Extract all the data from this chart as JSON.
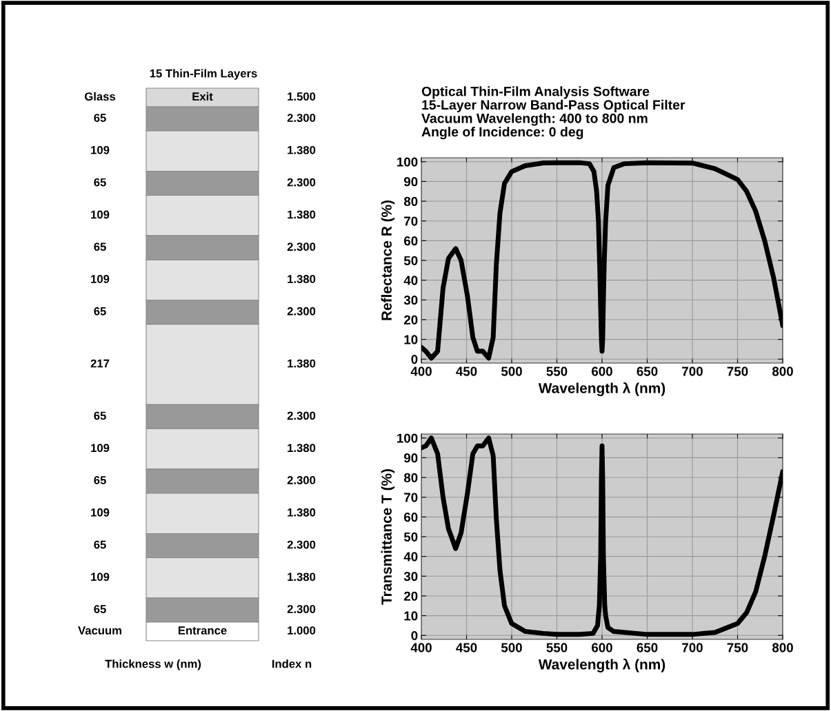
{
  "chart_data": [
    {
      "type": "other",
      "title": "15 Thin-Film Layers",
      "xlabel": "Thickness w (nm)",
      "y2label": "Index n",
      "categories": [
        "Glass",
        null,
        null,
        null,
        null,
        null,
        null,
        null,
        null,
        null,
        null,
        null,
        null,
        null,
        null,
        null,
        "Vacuum"
      ],
      "data_labels": true,
      "values": [
        null,
        65,
        109,
        65,
        109,
        65,
        109,
        65,
        217,
        65,
        109,
        65,
        109,
        65,
        109,
        65,
        null
      ],
      "cell_labels": [
        "Exit",
        null,
        null,
        null,
        null,
        null,
        null,
        null,
        null,
        null,
        null,
        null,
        null,
        null,
        null,
        null,
        "Entrance"
      ],
      "y2_categories": [
        "1.500",
        "2.300",
        "1.380",
        "2.300",
        "1.380",
        "2.300",
        "1.380",
        "2.300",
        "1.380",
        "2.300",
        "1.380",
        "2.300",
        "1.380",
        "2.300",
        "1.380",
        "2.300",
        "1.000"
      ],
      "colors": [
        "#d9d9d9",
        "#999999",
        "#e3e3e3",
        "#999999",
        "#e3e3e3",
        "#999999",
        "#e3e3e3",
        "#999999",
        "#e3e3e3",
        "#999999",
        "#e3e3e3",
        "#999999",
        "#e3e3e3",
        "#999999",
        "#e3e3e3",
        "#999999",
        "#ffffff"
      ]
    },
    {
      "type": "line",
      "title": "Optical Thin-Film Analysis Software\n15-Layer Narrow Band-Pass Optical Filter\nVacuum Wavelength: 400 to 800 nm\nAngle of Incidence: 0 deg",
      "xlabel": "Wavelength λ (nm)",
      "ylabel": "Reflectance R (%)",
      "x": [
        400,
        405,
        411,
        418,
        424,
        430,
        438,
        444,
        451,
        457,
        462,
        468,
        474.5,
        479.5,
        483,
        487,
        492,
        500,
        515,
        535,
        550,
        575,
        586,
        591,
        594,
        596,
        597.5,
        598.5,
        599.3,
        600,
        600.7,
        601.5,
        602.5,
        604,
        606.5,
        613,
        625,
        650,
        700,
        725,
        750,
        760,
        770,
        780,
        790,
        800
      ],
      "series": [
        {
          "color": "#000000",
          "values": [
            6,
            4,
            0.5,
            4,
            36,
            51,
            56,
            50,
            32,
            11,
            4,
            4,
            0.5,
            11,
            48,
            74,
            89,
            95,
            98,
            99.4,
            99.5,
            99.5,
            99,
            95,
            85,
            70,
            45,
            25,
            10,
            4,
            10,
            30,
            50,
            70,
            88,
            97,
            99,
            99.5,
            99.3,
            96.5,
            91,
            85,
            75,
            60,
            41,
            17
          ]
        }
      ],
      "xlim": [
        400,
        800
      ],
      "xticks": [
        400,
        450,
        500,
        550,
        600,
        650,
        700,
        750,
        800
      ],
      "ylim": [
        -2,
        102
      ],
      "yticks": [
        0,
        10,
        20,
        30,
        40,
        50,
        60,
        70,
        80,
        90,
        100
      ],
      "grid": true,
      "line_style": "solid"
    },
    {
      "type": "line",
      "xlabel": "Wavelength λ (nm)",
      "ylabel": "Transmittance T (%)",
      "x": [
        400,
        405,
        411,
        418,
        424,
        430,
        438,
        444,
        451,
        457,
        462,
        468,
        474.5,
        479.5,
        483,
        487,
        492,
        500,
        515,
        535,
        550,
        575,
        590,
        595,
        597,
        598.5,
        599.3,
        600,
        600.7,
        601.5,
        603,
        604,
        606.5,
        613,
        650,
        700,
        725,
        750,
        760,
        770,
        780,
        790,
        800
      ],
      "series": [
        {
          "color": "#000000",
          "values": [
            95,
            96,
            100,
            92,
            70,
            54,
            44,
            52,
            72,
            92,
            96,
            96,
            100,
            91,
            59,
            33,
            15,
            6,
            2,
            1,
            0.5,
            0.5,
            1,
            5,
            15,
            40,
            80,
            96,
            80,
            40,
            15,
            10,
            4,
            2,
            0.5,
            0.5,
            1.5,
            6,
            11.5,
            22,
            40,
            61,
            83
          ]
        }
      ],
      "xlim": [
        400,
        800
      ],
      "xticks": [
        400,
        450,
        500,
        550,
        600,
        650,
        700,
        750,
        800
      ],
      "ylim": [
        -2,
        102
      ],
      "yticks": [
        0,
        10,
        20,
        30,
        40,
        50,
        60,
        70,
        80,
        90,
        100
      ],
      "grid": true,
      "line_style": "solid"
    }
  ]
}
